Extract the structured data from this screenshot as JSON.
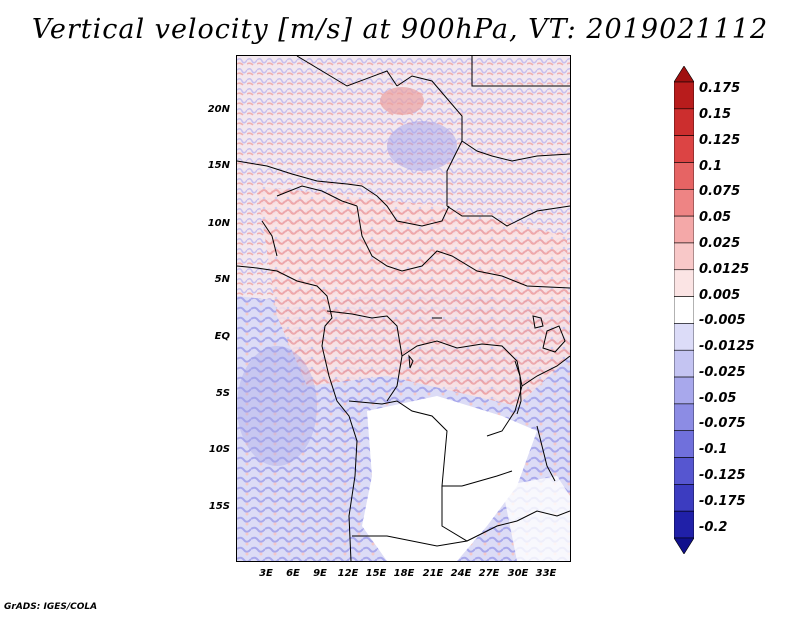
{
  "title": "Vertical velocity [m/s] at 900hPa, VT: 2019021112",
  "credit": "GrADS: IGES/COLA",
  "map": {
    "lat_labels": [
      "20N",
      "15N",
      "10N",
      "5N",
      "EQ",
      "5S",
      "10S",
      "15S"
    ],
    "lon_labels": [
      "3E",
      "6E",
      "9E",
      "12E",
      "15E",
      "18E",
      "21E",
      "24E",
      "27E",
      "30E",
      "33E"
    ]
  },
  "colorbar": {
    "labels": [
      "0.175",
      "0.15",
      "0.125",
      "0.1",
      "0.075",
      "0.05",
      "0.025",
      "0.0125",
      "0.005",
      "-0.005",
      "-0.0125",
      "-0.025",
      "-0.05",
      "-0.075",
      "-0.1",
      "-0.125",
      "-0.175",
      "-0.2"
    ],
    "colors": [
      "#a01010",
      "#b81c1c",
      "#cc2e2e",
      "#dc4444",
      "#e66464",
      "#ee8484",
      "#f4a8a8",
      "#f8c8c8",
      "#fbe4e4",
      "#ffffff",
      "#dcdcf8",
      "#c4c4f2",
      "#a8a8ec",
      "#8c8ce4",
      "#7070dc",
      "#5656d0",
      "#3c3cc0",
      "#2020a8",
      "#10108c"
    ]
  }
}
